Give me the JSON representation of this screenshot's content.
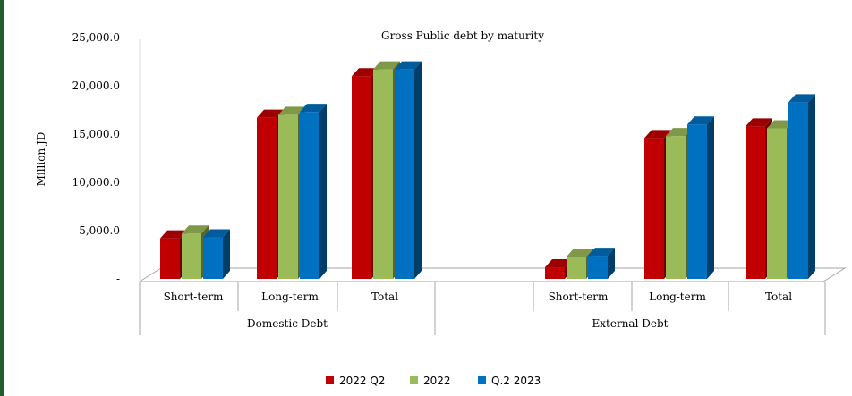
{
  "chart_data": {
    "type": "bar",
    "title": "Gross Public debt by maturity",
    "ylabel": "Million JD",
    "ylim": [
      0,
      25000
    ],
    "y_ticks": [
      "-",
      "5,000.0",
      "10,000.0",
      "15,000.0",
      "20,000.0",
      "25,000.0"
    ],
    "groups": [
      {
        "label": "Domestic Debt",
        "categories": [
          "Short-term",
          "Long-term",
          "Total"
        ]
      },
      {
        "label": "External Debt",
        "categories": [
          "Short-term",
          "Long-term",
          "Total"
        ]
      }
    ],
    "series": [
      {
        "name": "2022 Q2",
        "color": "#c00000",
        "values": [
          4200,
          16700,
          21000,
          1200,
          14600,
          15800
        ]
      },
      {
        "name": "2022",
        "color": "#9bbb59",
        "values": [
          4700,
          17000,
          21700,
          2300,
          14800,
          15600
        ]
      },
      {
        "name": "Q.2 2023",
        "color": "#0070c0",
        "values": [
          4300,
          17300,
          21700,
          2400,
          16000,
          18300
        ]
      }
    ],
    "legend_position": "bottom",
    "grid": false
  }
}
